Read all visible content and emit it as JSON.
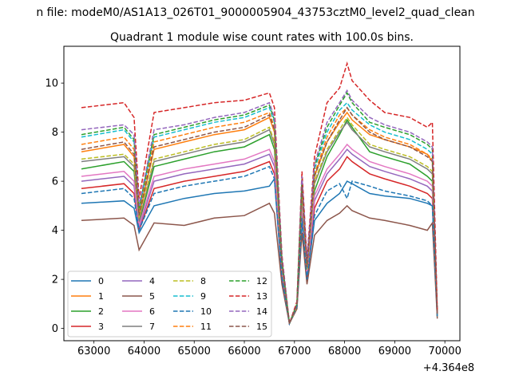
{
  "figure": {
    "suptitle": "n file: modeM0/AS1A13_026T01_9000005904_43753cztM0_level2_quad_clean",
    "title": "Quadrant 1 module wise count rates with 100.0s bins.",
    "x_offset_label": "+4.364e8"
  },
  "chart_data": {
    "type": "line",
    "title": "Quadrant 1 module wise count rates with 100.0s bins.",
    "xlabel": "",
    "ylabel": "",
    "xlim": [
      62400,
      70300
    ],
    "ylim": [
      -0.5,
      11.5
    ],
    "x_offset": 436400000,
    "x_ticks": [
      63000,
      64000,
      65000,
      66000,
      67000,
      68000,
      69000,
      70000
    ],
    "y_ticks": [
      0,
      2,
      4,
      6,
      8,
      10
    ],
    "x_tick_labels": [
      "63000",
      "64000",
      "65000",
      "66000",
      "67000",
      "68000",
      "69000",
      "70000"
    ],
    "y_tick_labels": [
      "0",
      "2",
      "4",
      "6",
      "8",
      "10"
    ],
    "x": [
      62750,
      63600,
      63800,
      63900,
      64200,
      64800,
      65400,
      66000,
      66500,
      66600,
      66750,
      66900,
      67050,
      67150,
      67250,
      67400,
      67650,
      67900,
      68050,
      68150,
      68500,
      68800,
      69300,
      69650,
      69750,
      69850
    ],
    "legend": {
      "position": "lower left",
      "columns": 4
    },
    "grid": false,
    "series": [
      {
        "name": "0",
        "color": "#1f77b4",
        "dash": "solid",
        "values": [
          5.1,
          5.2,
          4.9,
          3.9,
          5.0,
          5.3,
          5.5,
          5.6,
          5.8,
          6.1,
          2.0,
          0.2,
          0.9,
          4.4,
          2.0,
          4.4,
          5.1,
          5.5,
          6.0,
          5.9,
          5.5,
          5.4,
          5.3,
          5.1,
          5.0,
          0.5
        ]
      },
      {
        "name": "1",
        "color": "#ff7f0e",
        "dash": "solid",
        "values": [
          7.2,
          7.5,
          7.0,
          4.6,
          7.3,
          7.6,
          7.9,
          8.1,
          8.6,
          8.0,
          2.7,
          0.2,
          1.0,
          5.8,
          2.5,
          6.2,
          7.6,
          8.4,
          8.8,
          8.5,
          7.9,
          7.7,
          7.4,
          7.1,
          6.8,
          0.6
        ]
      },
      {
        "name": "2",
        "color": "#2ca02c",
        "dash": "solid",
        "values": [
          6.5,
          6.8,
          6.4,
          4.3,
          6.6,
          6.9,
          7.2,
          7.4,
          7.9,
          7.3,
          2.5,
          0.2,
          0.9,
          5.3,
          2.3,
          5.6,
          7.0,
          7.9,
          8.5,
          8.2,
          7.2,
          7.0,
          6.7,
          6.2,
          6.0,
          0.5
        ]
      },
      {
        "name": "3",
        "color": "#d62728",
        "dash": "solid",
        "values": [
          5.7,
          5.9,
          5.5,
          4.0,
          5.7,
          6.0,
          6.2,
          6.4,
          6.8,
          6.3,
          2.2,
          0.2,
          0.9,
          4.8,
          2.1,
          4.9,
          6.0,
          6.5,
          7.0,
          6.8,
          6.3,
          6.1,
          5.8,
          5.5,
          5.3,
          0.5
        ]
      },
      {
        "name": "4",
        "color": "#9467bd",
        "dash": "solid",
        "values": [
          6.0,
          6.2,
          5.8,
          4.1,
          6.0,
          6.3,
          6.5,
          6.7,
          7.1,
          6.6,
          2.3,
          0.2,
          0.9,
          5.0,
          2.2,
          5.2,
          6.3,
          6.9,
          7.3,
          7.1,
          6.6,
          6.4,
          6.1,
          5.8,
          5.6,
          0.5
        ]
      },
      {
        "name": "5",
        "color": "#8c564b",
        "dash": "solid",
        "values": [
          4.4,
          4.5,
          4.2,
          3.2,
          4.3,
          4.2,
          4.5,
          4.6,
          5.1,
          4.7,
          1.8,
          0.2,
          0.8,
          3.9,
          1.8,
          3.8,
          4.4,
          4.7,
          5.0,
          4.8,
          4.5,
          4.4,
          4.2,
          4.0,
          4.3,
          0.4
        ]
      },
      {
        "name": "6",
        "color": "#e377c2",
        "dash": "solid",
        "values": [
          6.2,
          6.4,
          6.0,
          4.2,
          6.2,
          6.5,
          6.7,
          6.9,
          7.3,
          6.8,
          2.4,
          0.2,
          0.9,
          5.1,
          2.2,
          5.4,
          6.5,
          7.1,
          7.5,
          7.3,
          6.8,
          6.6,
          6.3,
          6.0,
          5.8,
          0.5
        ]
      },
      {
        "name": "7",
        "color": "#7f7f7f",
        "dash": "solid",
        "values": [
          6.8,
          7.0,
          6.6,
          4.4,
          6.8,
          7.1,
          7.4,
          7.6,
          8.1,
          7.5,
          2.6,
          0.2,
          0.9,
          5.5,
          2.4,
          5.9,
          7.2,
          8.0,
          8.4,
          8.1,
          7.4,
          7.2,
          6.9,
          6.5,
          6.3,
          0.5
        ]
      },
      {
        "name": "8",
        "color": "#bcbd22",
        "dash": "dashed",
        "values": [
          6.9,
          7.1,
          6.7,
          4.5,
          6.9,
          7.2,
          7.5,
          7.7,
          8.2,
          7.6,
          2.6,
          0.2,
          0.9,
          5.6,
          2.4,
          6.0,
          7.3,
          8.1,
          8.6,
          8.3,
          7.5,
          7.3,
          7.0,
          6.6,
          6.4,
          0.5
        ]
      },
      {
        "name": "9",
        "color": "#17becf",
        "dash": "dashed",
        "values": [
          7.8,
          8.1,
          7.6,
          4.8,
          7.8,
          8.1,
          8.4,
          8.6,
          9.0,
          8.4,
          2.8,
          0.2,
          1.0,
          6.0,
          2.6,
          6.5,
          8.0,
          8.9,
          9.2,
          8.9,
          8.3,
          8.0,
          7.7,
          7.3,
          7.1,
          0.6
        ]
      },
      {
        "name": "10",
        "color": "#1f77b4",
        "dash": "dashed",
        "values": [
          5.5,
          5.7,
          5.3,
          4.0,
          5.5,
          5.8,
          6.0,
          6.2,
          6.6,
          6.1,
          2.1,
          0.2,
          0.9,
          4.5,
          2.0,
          4.6,
          5.6,
          5.9,
          5.3,
          6.0,
          5.8,
          5.6,
          5.4,
          5.2,
          5.0,
          0.5
        ]
      },
      {
        "name": "11",
        "color": "#ff7f0e",
        "dash": "dashed",
        "values": [
          7.5,
          7.8,
          7.3,
          4.7,
          7.6,
          7.9,
          8.2,
          8.4,
          8.8,
          8.2,
          2.7,
          0.2,
          1.0,
          5.9,
          2.5,
          6.3,
          7.8,
          8.7,
          9.0,
          8.7,
          8.1,
          7.8,
          7.5,
          7.1,
          6.9,
          0.6
        ]
      },
      {
        "name": "12",
        "color": "#2ca02c",
        "dash": "dashed",
        "values": [
          7.9,
          8.2,
          7.7,
          4.9,
          7.9,
          8.2,
          8.5,
          8.7,
          9.1,
          8.5,
          2.8,
          0.2,
          1.0,
          6.1,
          2.6,
          6.6,
          8.2,
          9.1,
          9.6,
          9.2,
          8.4,
          8.2,
          7.9,
          7.5,
          7.3,
          0.6
        ]
      },
      {
        "name": "13",
        "color": "#d62728",
        "dash": "dashed",
        "values": [
          9.0,
          9.2,
          8.6,
          5.3,
          8.8,
          9.0,
          9.2,
          9.3,
          9.6,
          9.0,
          3.0,
          0.2,
          1.1,
          6.4,
          2.8,
          7.0,
          9.2,
          9.8,
          10.8,
          10.1,
          9.3,
          8.8,
          8.6,
          8.2,
          8.4,
          0.7
        ]
      },
      {
        "name": "14",
        "color": "#9467bd",
        "dash": "dashed",
        "values": [
          8.1,
          8.3,
          7.9,
          5.0,
          8.1,
          8.3,
          8.6,
          8.8,
          9.2,
          8.6,
          2.9,
          0.2,
          1.0,
          6.2,
          2.7,
          6.7,
          8.4,
          9.2,
          9.7,
          9.3,
          8.6,
          8.3,
          8.0,
          7.6,
          7.4,
          0.6
        ]
      },
      {
        "name": "15",
        "color": "#8c564b",
        "dash": "dashed",
        "values": [
          7.3,
          7.6,
          7.1,
          4.6,
          7.4,
          7.7,
          8.0,
          8.2,
          8.7,
          8.1,
          2.7,
          0.2,
          1.0,
          5.8,
          2.5,
          6.2,
          7.6,
          8.5,
          9.0,
          8.7,
          8.0,
          7.7,
          7.4,
          7.0,
          6.8,
          0.6
        ]
      }
    ]
  }
}
